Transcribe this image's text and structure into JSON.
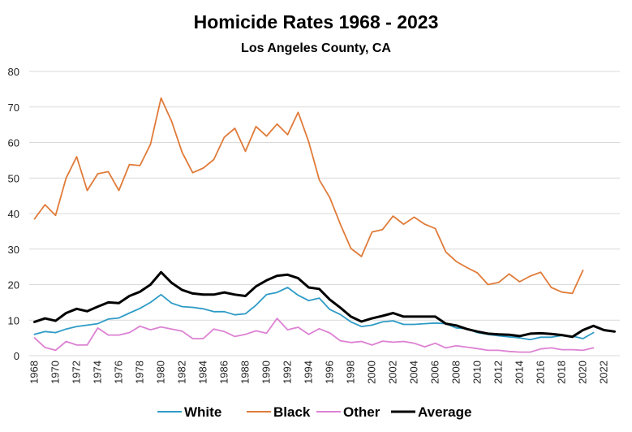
{
  "chart_data": {
    "type": "line",
    "title": "Homicide Rates 1968 - 2023",
    "subtitle": "Los Angeles County, CA",
    "xlabel": "",
    "ylabel": "",
    "ylim": [
      0,
      80
    ],
    "yticks": [
      0,
      10,
      20,
      30,
      40,
      50,
      60,
      70,
      80
    ],
    "xticks": [
      1968,
      1970,
      1972,
      1974,
      1976,
      1978,
      1980,
      1982,
      1984,
      1986,
      1988,
      1990,
      1992,
      1994,
      1996,
      1998,
      2000,
      2002,
      2004,
      2006,
      2008,
      2010,
      2012,
      2014,
      2016,
      2018,
      2020,
      2022
    ],
    "grid": true,
    "legend_position": "bottom",
    "x": [
      1968,
      1969,
      1970,
      1971,
      1972,
      1973,
      1974,
      1975,
      1976,
      1977,
      1978,
      1979,
      1980,
      1981,
      1982,
      1983,
      1984,
      1985,
      1986,
      1987,
      1988,
      1989,
      1990,
      1991,
      1992,
      1993,
      1994,
      1995,
      1996,
      1997,
      1998,
      1999,
      2000,
      2001,
      2002,
      2003,
      2004,
      2005,
      2006,
      2007,
      2008,
      2009,
      2010,
      2011,
      2012,
      2013,
      2014,
      2015,
      2016,
      2017,
      2018,
      2019,
      2020,
      2021,
      2022,
      2023
    ],
    "series": [
      {
        "name": "White",
        "color": "#2e9bc6",
        "values": [
          6.0,
          6.8,
          6.5,
          7.5,
          8.2,
          8.6,
          9.0,
          10.3,
          10.6,
          12.0,
          13.3,
          15.0,
          17.2,
          14.8,
          13.8,
          13.6,
          13.2,
          12.4,
          12.4,
          11.5,
          11.8,
          14.2,
          17.2,
          17.8,
          19.2,
          17.0,
          15.5,
          16.2,
          13.0,
          11.6,
          9.5,
          8.2,
          8.6,
          9.5,
          9.8,
          8.8,
          8.8,
          9.0,
          9.2,
          9.0,
          7.8,
          7.6,
          6.5,
          6.0,
          5.6,
          5.3,
          5.0,
          4.5,
          5.2,
          5.2,
          5.7,
          5.5,
          4.8,
          6.5,
          null,
          null
        ]
      },
      {
        "name": "Black",
        "color": "#e07b39",
        "values": [
          38.5,
          42.5,
          39.5,
          50.0,
          56.0,
          46.5,
          51.2,
          51.8,
          46.5,
          53.8,
          53.5,
          59.5,
          72.5,
          66.0,
          57.2,
          51.5,
          52.8,
          55.2,
          61.5,
          64.0,
          57.5,
          64.5,
          61.8,
          65.2,
          62.2,
          68.5,
          60.2,
          49.5,
          44.5,
          37.0,
          30.2,
          27.9,
          34.8,
          35.5,
          39.3,
          37.0,
          39.0,
          37.0,
          35.8,
          29.2,
          26.5,
          24.8,
          23.3,
          20.0,
          20.6,
          23.0,
          20.8,
          22.4,
          23.5,
          19.2,
          17.9,
          17.5,
          24.0,
          null,
          null,
          null
        ]
      },
      {
        "name": "Other",
        "color": "#dd82d3",
        "values": [
          5.0,
          2.3,
          1.5,
          4.0,
          3.0,
          3.0,
          7.8,
          5.8,
          5.8,
          6.5,
          8.3,
          7.3,
          8.1,
          7.5,
          6.9,
          4.8,
          4.8,
          7.5,
          6.8,
          5.4,
          6.0,
          7.0,
          6.3,
          10.5,
          7.3,
          8.0,
          6.0,
          7.6,
          6.4,
          4.2,
          3.7,
          4.0,
          3.0,
          4.1,
          3.8,
          4.0,
          3.5,
          2.5,
          3.5,
          2.2,
          2.8,
          2.4,
          2.0,
          1.5,
          1.5,
          1.2,
          1.0,
          1.0,
          1.9,
          2.2,
          1.7,
          1.7,
          1.5,
          2.2,
          null,
          null
        ]
      },
      {
        "name": "Average",
        "color": "#000000",
        "values": [
          9.5,
          10.5,
          9.8,
          12.0,
          13.2,
          12.5,
          13.8,
          15.0,
          14.8,
          16.8,
          18.0,
          20.0,
          23.5,
          20.5,
          18.5,
          17.5,
          17.2,
          17.2,
          17.8,
          17.2,
          16.8,
          19.5,
          21.2,
          22.5,
          22.8,
          21.8,
          19.2,
          18.8,
          15.8,
          13.5,
          11.0,
          9.6,
          10.5,
          11.2,
          12.0,
          11.0,
          11.0,
          11.0,
          11.0,
          9.0,
          8.5,
          7.5,
          6.8,
          6.2,
          6.0,
          5.9,
          5.5,
          6.2,
          6.3,
          6.1,
          5.8,
          5.3,
          7.2,
          8.4,
          7.2,
          6.8
        ]
      }
    ]
  }
}
